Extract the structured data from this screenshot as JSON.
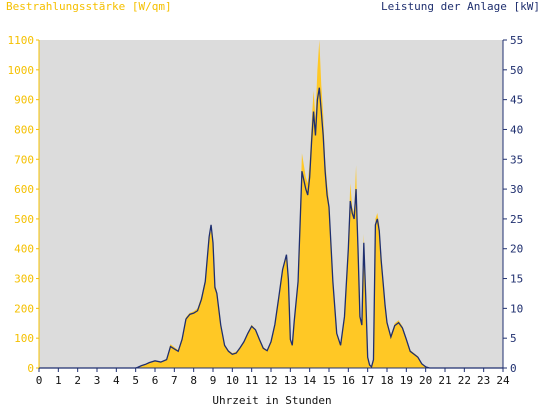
{
  "header": {
    "left_label": "Bestrahlungsstärke [W/qm]",
    "right_label": "Leistung der Anlage [kW]"
  },
  "colors": {
    "irradiance": "#ffc825",
    "power": "#1f2f6f",
    "plot_background": "#dcdcdc",
    "left_axis_text": "#f5c000",
    "right_axis_text": "#1f2f6f",
    "bottom_axis": "#111111"
  },
  "chart_data": {
    "type": "area",
    "title": "",
    "xlabel": "Uhrzeit in Stunden",
    "ylabel_left": "Bestrahlungsstärke [W/qm]",
    "ylabel_right": "Leistung der Anlage [kW]",
    "xlim": [
      0,
      24
    ],
    "ylim_left": [
      0,
      1100
    ],
    "ylim_right": [
      0,
      55
    ],
    "x_ticks": [
      0,
      1,
      2,
      3,
      4,
      5,
      6,
      7,
      8,
      9,
      10,
      11,
      12,
      13,
      14,
      15,
      16,
      17,
      18,
      19,
      20,
      21,
      22,
      23,
      24
    ],
    "y_ticks_left": [
      0,
      100,
      200,
      300,
      400,
      500,
      600,
      700,
      800,
      900,
      1000,
      1100
    ],
    "y_ticks_right": [
      0,
      5,
      10,
      15,
      20,
      25,
      30,
      35,
      40,
      45,
      50,
      55
    ],
    "grid": false,
    "series": [
      {
        "name": "Bestrahlungsstärke [W/qm]",
        "axis": "left",
        "type": "area",
        "x": [
          0,
          5,
          5.1,
          5.3,
          5.5,
          5.7,
          6,
          6.3,
          6.6,
          6.8,
          7,
          7.2,
          7.4,
          7.6,
          7.8,
          8,
          8.2,
          8.4,
          8.6,
          8.8,
          8.9,
          9,
          9.1,
          9.2,
          9.4,
          9.6,
          9.8,
          10,
          10.2,
          10.4,
          10.6,
          10.8,
          11,
          11.2,
          11.4,
          11.6,
          11.8,
          12,
          12.2,
          12.4,
          12.6,
          12.8,
          12.9,
          13,
          13.1,
          13.2,
          13.4,
          13.6,
          13.8,
          13.9,
          14,
          14.1,
          14.2,
          14.3,
          14.4,
          14.5,
          14.6,
          14.7,
          14.8,
          14.9,
          15,
          15.2,
          15.4,
          15.6,
          15.8,
          16,
          16.1,
          16.2,
          16.3,
          16.4,
          16.5,
          16.6,
          16.7,
          16.8,
          16.9,
          17,
          17.1,
          17.2,
          17.3,
          17.4,
          17.5,
          17.6,
          17.7,
          17.8,
          17.9,
          18,
          18.2,
          18.4,
          18.6,
          18.8,
          19,
          19.2,
          19.4,
          19.6,
          19.8,
          20,
          20.2,
          20.3,
          24
        ],
        "values": [
          0,
          0,
          2,
          8,
          12,
          18,
          25,
          20,
          30,
          80,
          70,
          60,
          100,
          170,
          185,
          190,
          200,
          240,
          300,
          440,
          460,
          420,
          280,
          260,
          150,
          80,
          60,
          50,
          55,
          70,
          90,
          120,
          145,
          130,
          100,
          70,
          60,
          90,
          150,
          240,
          330,
          380,
          300,
          100,
          80,
          160,
          300,
          720,
          640,
          620,
          690,
          820,
          930,
          840,
          1000,
          1100,
          950,
          850,
          700,
          620,
          560,
          300,
          120,
          80,
          180,
          420,
          620,
          540,
          520,
          680,
          420,
          180,
          150,
          450,
          250,
          40,
          10,
          5,
          30,
          500,
          520,
          480,
          380,
          300,
          220,
          160,
          110,
          150,
          160,
          140,
          100,
          60,
          50,
          40,
          15,
          5,
          0,
          0,
          0
        ]
      },
      {
        "name": "Leistung der Anlage [kW]",
        "axis": "right",
        "type": "line",
        "x": [
          0,
          5,
          5.1,
          5.3,
          5.5,
          5.7,
          6,
          6.3,
          6.6,
          6.8,
          7,
          7.2,
          7.4,
          7.6,
          7.8,
          8,
          8.2,
          8.4,
          8.6,
          8.8,
          8.9,
          9,
          9.1,
          9.2,
          9.4,
          9.6,
          9.8,
          10,
          10.2,
          10.4,
          10.6,
          10.8,
          11,
          11.2,
          11.4,
          11.6,
          11.8,
          12,
          12.2,
          12.4,
          12.6,
          12.8,
          12.9,
          13,
          13.1,
          13.2,
          13.4,
          13.6,
          13.8,
          13.9,
          14,
          14.1,
          14.2,
          14.3,
          14.4,
          14.5,
          14.6,
          14.7,
          14.8,
          14.9,
          15,
          15.2,
          15.4,
          15.6,
          15.8,
          16,
          16.1,
          16.2,
          16.3,
          16.4,
          16.5,
          16.6,
          16.7,
          16.8,
          16.9,
          17,
          17.1,
          17.2,
          17.3,
          17.4,
          17.5,
          17.6,
          17.7,
          17.8,
          17.9,
          18,
          18.2,
          18.4,
          18.6,
          18.8,
          19,
          19.2,
          19.4,
          19.6,
          19.8,
          20,
          20.2,
          20.3,
          24
        ],
        "values": [
          0,
          0,
          0.1,
          0.4,
          0.6,
          0.9,
          1.2,
          1,
          1.4,
          3.6,
          3.2,
          2.8,
          4.8,
          8.2,
          9,
          9.2,
          9.6,
          11.5,
          14.5,
          22,
          24,
          21,
          13.5,
          12.5,
          7.2,
          3.8,
          2.8,
          2.3,
          2.5,
          3.4,
          4.4,
          5.8,
          7,
          6.4,
          4.8,
          3.3,
          2.9,
          4.4,
          7.3,
          11.8,
          16.5,
          19,
          14.8,
          4.8,
          3.8,
          7.8,
          14.5,
          33,
          30,
          29,
          32,
          38,
          43,
          39,
          45,
          47,
          43,
          39,
          33,
          29,
          27,
          14.5,
          5.8,
          3.8,
          8.6,
          20,
          28,
          26,
          25,
          30,
          20,
          8.6,
          7.2,
          21,
          12,
          1.8,
          0.5,
          0.2,
          1.4,
          24,
          25,
          23,
          18,
          14.3,
          10.5,
          7.6,
          5.2,
          7.1,
          7.6,
          6.7,
          4.8,
          2.8,
          2.3,
          1.8,
          0.7,
          0.2,
          0,
          0,
          0
        ]
      }
    ]
  }
}
